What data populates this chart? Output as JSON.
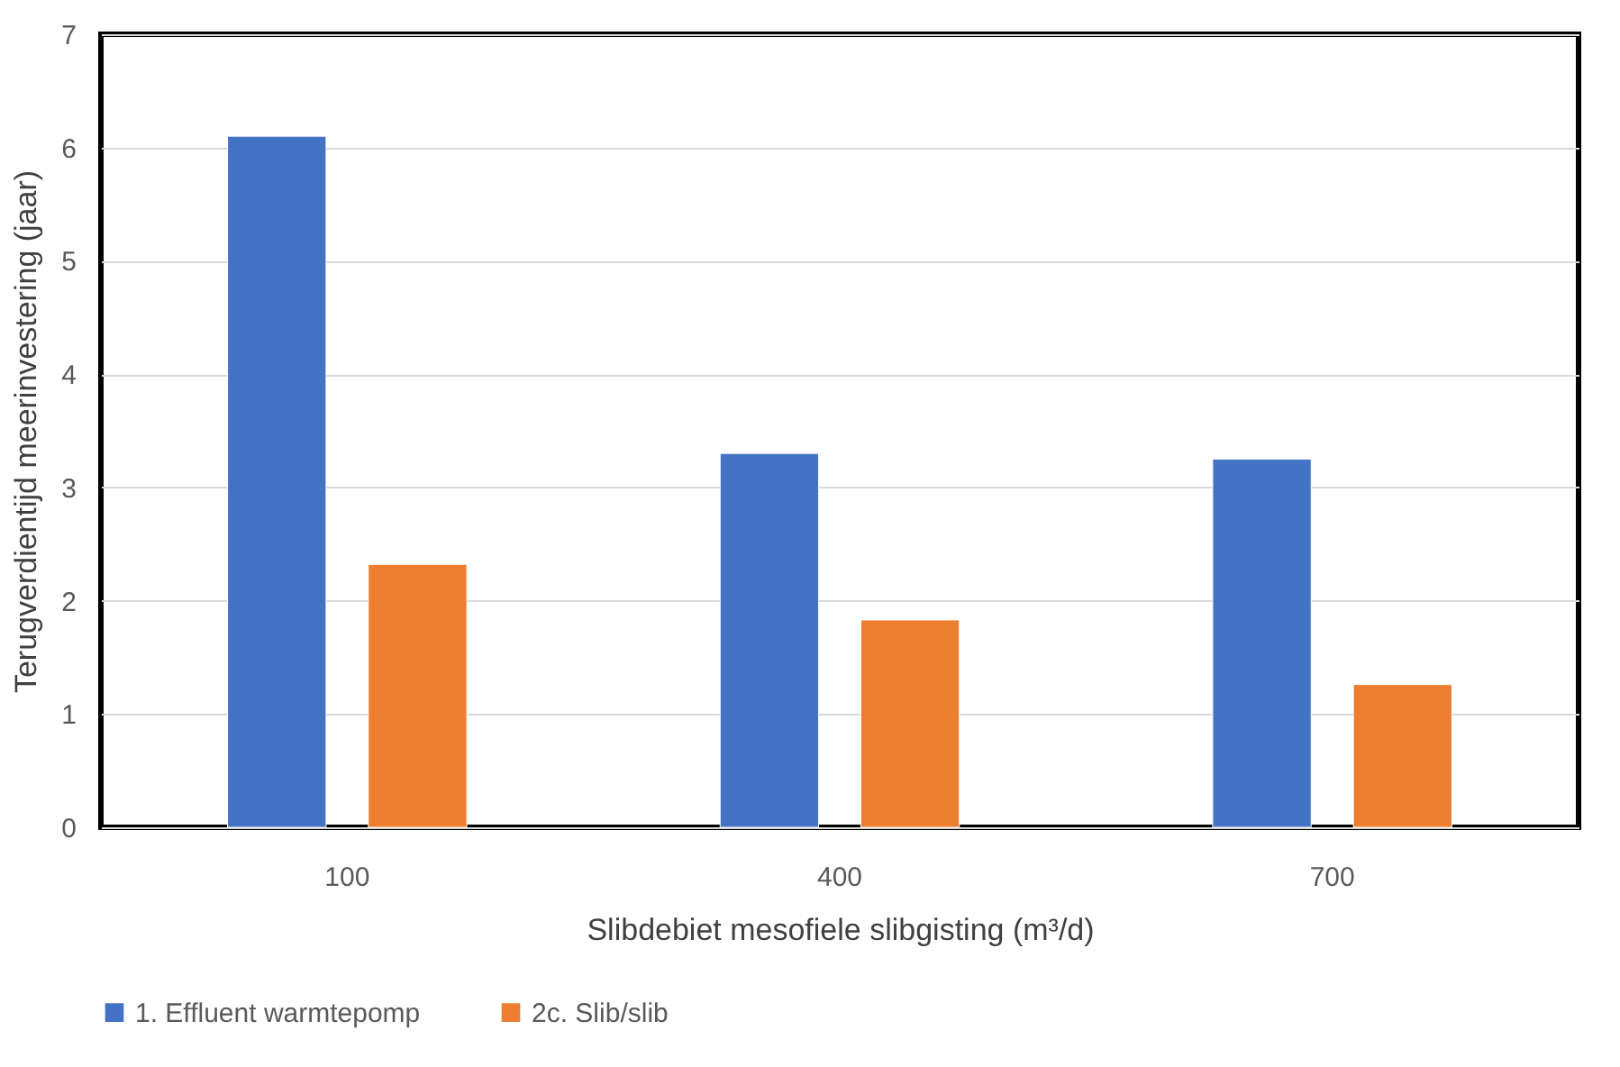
{
  "chart_data": {
    "type": "bar",
    "xlabel": "Slibdebiet mesofiele slibgisting (m³/d)",
    "ylabel": "Terugverdientijd meerinvestering (jaar)",
    "categories": [
      "100",
      "400",
      "700"
    ],
    "series": [
      {
        "name": "1. Effluent warmtepomp",
        "color": "#4472c4",
        "values": [
          6.1,
          3.3,
          3.25
        ]
      },
      {
        "name": "2c. Slib/slib",
        "color": "#ed7d31",
        "values": [
          2.32,
          1.83,
          1.26
        ]
      }
    ],
    "ylim": [
      0,
      7
    ],
    "yticks": [
      0,
      1,
      2,
      3,
      4,
      5,
      6,
      7
    ],
    "grid": "y",
    "legend": "bottom"
  }
}
